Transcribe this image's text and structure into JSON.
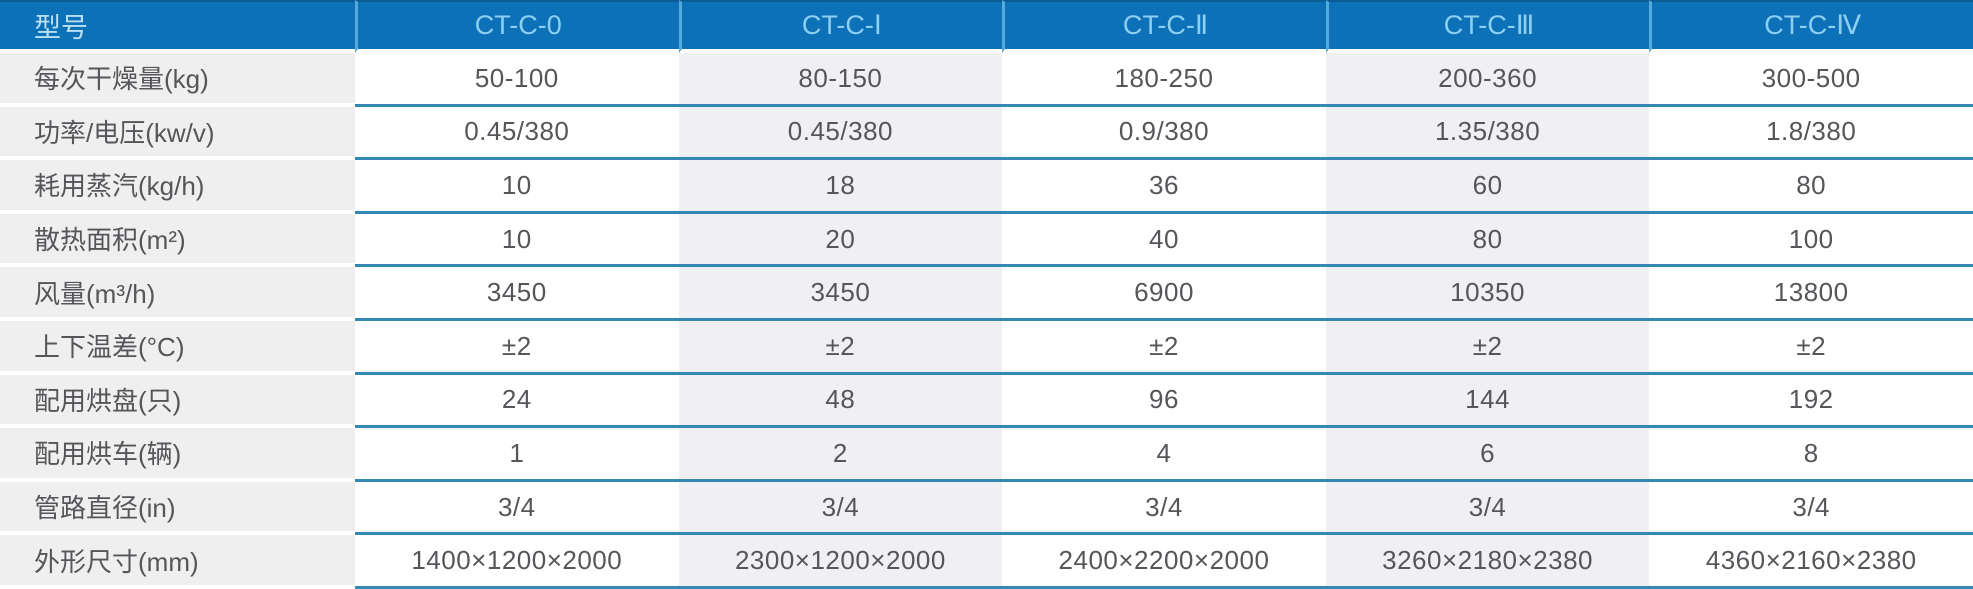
{
  "colors": {
    "header_bg": "#0d71b8",
    "header_top_edge": "#0a5c97",
    "header_text": "#8ccff1",
    "header_label_text": "#b9e0f3",
    "header_divider": "#53abdb",
    "row_line": "#3389b6",
    "label_bg": "#efefef",
    "alt_col_bg": "#f0f0f2",
    "cell_text": "#55565a"
  },
  "chart_data": {
    "type": "table",
    "columns": [
      "型号",
      "CT-C-0",
      "CT-C-Ⅰ",
      "CT-C-Ⅱ",
      "CT-C-Ⅲ",
      "CT-C-Ⅳ"
    ],
    "rows": [
      [
        "每次干燥量(kg)",
        "50-100",
        "80-150",
        "180-250",
        "200-360",
        "300-500"
      ],
      [
        "功率/电压(kw/v)",
        "0.45/380",
        "0.45/380",
        "0.9/380",
        "1.35/380",
        "1.8/380"
      ],
      [
        "耗用蒸汽(kg/h)",
        "10",
        "18",
        "36",
        "60",
        "80"
      ],
      [
        "散热面积(m²)",
        "10",
        "20",
        "40",
        "80",
        "100"
      ],
      [
        "风量(m³/h)",
        "3450",
        "3450",
        "6900",
        "10350",
        "13800"
      ],
      [
        "上下温差(°C)",
        "±2",
        "±2",
        "±2",
        "±2",
        "±2"
      ],
      [
        "配用烘盘(只)",
        "24",
        "48",
        "96",
        "144",
        "192"
      ],
      [
        "配用烘车(辆)",
        "1",
        "2",
        "4",
        "6",
        "8"
      ],
      [
        "管路直径(in)",
        "3/4",
        "3/4",
        "3/4",
        "3/4",
        "3/4"
      ],
      [
        "外形尺寸(mm)",
        "1400×1200×2000",
        "2300×1200×2000",
        "2400×2200×2000",
        "3260×2180×2380",
        "4360×2160×2380"
      ]
    ],
    "layout": {
      "header_row": true,
      "label_column": true,
      "shaded_columns": [
        "型号",
        "CT-C-Ⅰ",
        "CT-C-Ⅲ"
      ],
      "legend_position": "none",
      "grid": "horizontal-blue-rules"
    }
  }
}
